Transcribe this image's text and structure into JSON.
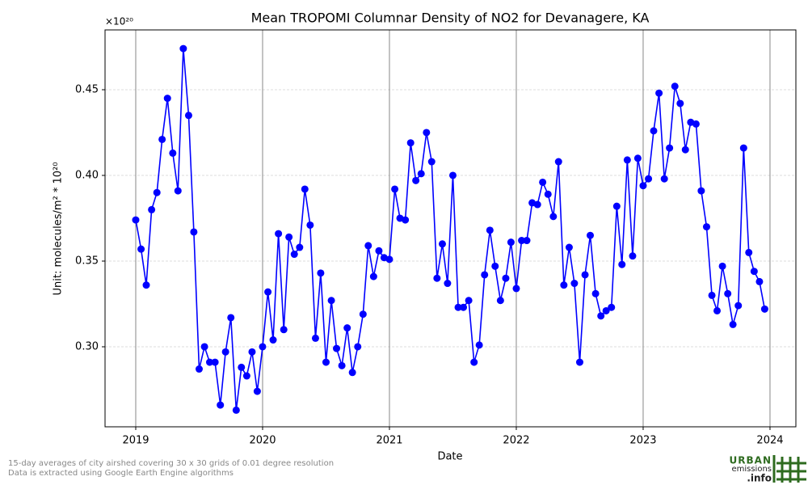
{
  "chart_data": {
    "type": "line",
    "title": "Mean TROPOMI Columnar Density of NO2 for Devanagere, KA",
    "x_label": "Date",
    "y_label": "Unit: molecules/m² * 10²⁰",
    "y_offset_label": "×10²⁰",
    "xlim": [
      2018.758,
      2024.204
    ],
    "xticks": [
      2019,
      2020,
      2021,
      2022,
      2023,
      2024
    ],
    "ylim": [
      0.2533,
      0.4849
    ],
    "yticks": [
      {
        "value": 0.3,
        "label": "0.30"
      },
      {
        "value": 0.35,
        "label": "0.35"
      },
      {
        "value": 0.4,
        "label": "0.40"
      },
      {
        "value": 0.45,
        "label": "0.45"
      }
    ],
    "grid": true,
    "series": [
      {
        "color": "#0000ff",
        "x": [
          2019.0,
          2019.042,
          2019.083,
          2019.125,
          2019.167,
          2019.208,
          2019.25,
          2019.292,
          2019.333,
          2019.375,
          2019.417,
          2019.458,
          2019.5,
          2019.542,
          2019.583,
          2019.625,
          2019.667,
          2019.708,
          2019.75,
          2019.792,
          2019.833,
          2019.875,
          2019.917,
          2019.958,
          2020.0,
          2020.042,
          2020.083,
          2020.125,
          2020.167,
          2020.208,
          2020.25,
          2020.292,
          2020.333,
          2020.375,
          2020.417,
          2020.458,
          2020.5,
          2020.542,
          2020.583,
          2020.625,
          2020.667,
          2020.708,
          2020.75,
          2020.792,
          2020.833,
          2020.875,
          2020.917,
          2020.958,
          2021.0,
          2021.042,
          2021.083,
          2021.125,
          2021.167,
          2021.208,
          2021.25,
          2021.292,
          2021.333,
          2021.375,
          2021.417,
          2021.458,
          2021.5,
          2021.542,
          2021.583,
          2021.625,
          2021.667,
          2021.708,
          2021.75,
          2021.792,
          2021.833,
          2021.875,
          2021.917,
          2021.958,
          2022.0,
          2022.042,
          2022.083,
          2022.125,
          2022.167,
          2022.208,
          2022.25,
          2022.292,
          2022.333,
          2022.375,
          2022.417,
          2022.458,
          2022.5,
          2022.542,
          2022.583,
          2022.625,
          2022.667,
          2022.708,
          2022.75,
          2022.792,
          2022.833,
          2022.875,
          2022.917,
          2022.958,
          2023.0,
          2023.042,
          2023.083,
          2023.125,
          2023.167,
          2023.208,
          2023.25,
          2023.292,
          2023.333,
          2023.375,
          2023.417,
          2023.458,
          2023.5,
          2023.542,
          2023.583,
          2023.625,
          2023.667,
          2023.708,
          2023.75,
          2023.792,
          2023.833,
          2023.875,
          2023.917,
          2023.958
        ],
        "values": [
          0.374,
          0.357,
          0.336,
          0.38,
          0.39,
          0.421,
          0.445,
          0.413,
          0.391,
          0.474,
          0.435,
          0.367,
          0.287,
          0.3,
          0.291,
          0.291,
          0.266,
          0.297,
          0.317,
          0.263,
          0.288,
          0.283,
          0.297,
          0.274,
          0.3,
          0.332,
          0.304,
          0.366,
          0.31,
          0.364,
          0.354,
          0.358,
          0.392,
          0.371,
          0.305,
          0.343,
          0.291,
          0.327,
          0.299,
          0.289,
          0.311,
          0.285,
          0.3,
          0.319,
          0.359,
          0.341,
          0.356,
          0.352,
          0.351,
          0.392,
          0.375,
          0.374,
          0.419,
          0.397,
          0.401,
          0.425,
          0.408,
          0.34,
          0.36,
          0.337,
          0.4,
          0.323,
          0.323,
          0.327,
          0.291,
          0.301,
          0.342,
          0.368,
          0.347,
          0.327,
          0.34,
          0.361,
          0.334,
          0.362,
          0.362,
          0.384,
          0.383,
          0.396,
          0.389,
          0.376,
          0.408,
          0.336,
          0.358,
          0.337,
          0.291,
          0.342,
          0.365,
          0.331,
          0.318,
          0.321,
          0.323,
          0.382,
          0.348,
          0.409,
          0.353,
          0.41,
          0.394,
          0.398,
          0.426,
          0.448,
          0.398,
          0.416,
          0.452,
          0.442,
          0.415,
          0.431,
          0.43,
          0.391,
          0.37,
          0.33,
          0.321,
          0.347,
          0.331,
          0.313,
          0.324,
          0.416,
          0.355,
          0.344,
          0.338,
          0.322
        ]
      }
    ]
  },
  "footnotes": [
    "15-day averages of city airshed covering 30 x 30 grids of 0.01 degree resolution",
    "Data is extracted using Google Earth Engine algorithms"
  ],
  "logo": {
    "line1": "URBAN",
    "line2": "emissions",
    "line3": ".info"
  }
}
